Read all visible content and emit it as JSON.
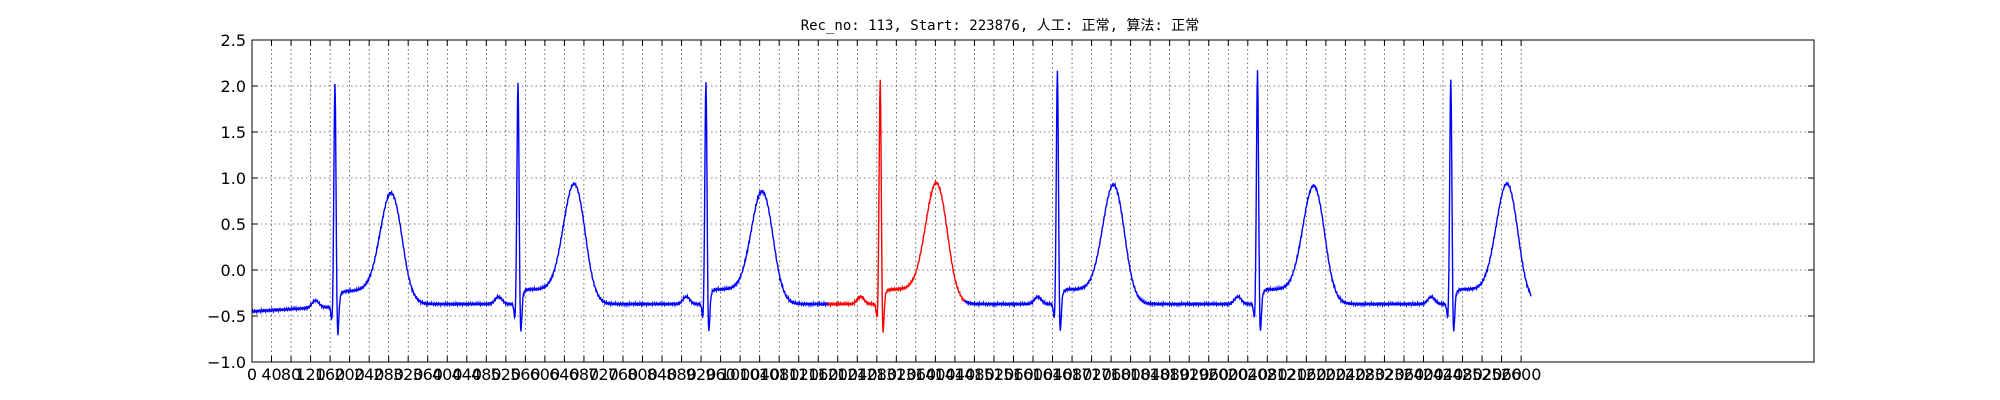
{
  "chart_data": {
    "type": "line",
    "title": "Rec_no: 113, Start: 223876, 人工: 正常, 算法: 正常",
    "xlabel": "",
    "ylabel": "",
    "xlim": [
      0,
      3200
    ],
    "ylim": [
      -1.0,
      2.5
    ],
    "grid": true,
    "yticks": [
      "−1.0",
      "−0.5",
      "0.0",
      "0.5",
      "1.0",
      "1.5",
      "2.0",
      "2.5"
    ],
    "yticks_values": [
      -1.0,
      -0.5,
      0.0,
      0.5,
      1.0,
      1.5,
      2.0,
      2.5
    ],
    "xticks_values": [
      0,
      40,
      80,
      120,
      160,
      200,
      240,
      280,
      320,
      360,
      400,
      440,
      480,
      520,
      560,
      600,
      640,
      680,
      720,
      760,
      800,
      840,
      880,
      920,
      960,
      1000,
      1040,
      1080,
      1120,
      1160,
      1200,
      1240,
      1280,
      1320,
      1360,
      1400,
      1440,
      1480,
      1520,
      1560,
      1600,
      1640,
      1680,
      1720,
      1760,
      1800,
      1840,
      1880,
      1920,
      1960,
      2000,
      2040,
      2080,
      2120,
      2160,
      2200,
      2240,
      2280,
      2320,
      2360,
      2400,
      2440,
      2480,
      2520,
      2560,
      2600
    ],
    "xticks": [
      "0",
      "40",
      "80",
      "120",
      "160",
      "200",
      "240",
      "280",
      "320",
      "360",
      "400",
      "440",
      "480",
      "520",
      "560",
      "600",
      "640",
      "680",
      "720",
      "760",
      "800",
      "840",
      "880",
      "920",
      "960",
      "1000",
      "1040",
      "1080",
      "1120",
      "1160",
      "1200",
      "1240",
      "1280",
      "1320",
      "1360",
      "1400",
      "1440",
      "1480",
      "1520",
      "1560",
      "1600",
      "1640",
      "1680",
      "1720",
      "1760",
      "1800",
      "1840",
      "1880",
      "1920",
      "1960",
      "2000",
      "2040",
      "2080",
      "2120",
      "2160",
      "2200",
      "2240",
      "2280",
      "2320",
      "2360",
      "2400",
      "2440",
      "2480",
      "2520",
      "2560",
      "2600"
    ],
    "series_colors": {
      "normal": "#0000ff",
      "highlight": "#ff0000"
    },
    "highlight_range": [
      1180,
      1460
    ],
    "signal_end": 2620,
    "beats": [
      {
        "r_x": 170,
        "r_amp": 2.05,
        "t_amp": 0.8
      },
      {
        "r_x": 545,
        "r_amp": 2.03,
        "t_amp": 0.9
      },
      {
        "r_x": 930,
        "r_amp": 2.05,
        "t_amp": 0.82
      },
      {
        "r_x": 1287,
        "r_amp": 2.05,
        "t_amp": 0.91
      },
      {
        "r_x": 1650,
        "r_amp": 2.15,
        "t_amp": 0.89
      },
      {
        "r_x": 2060,
        "r_amp": 2.15,
        "t_amp": 0.88
      },
      {
        "r_x": 2456,
        "r_amp": 2.07,
        "t_amp": 0.9
      }
    ],
    "baseline_level": -0.37
  }
}
